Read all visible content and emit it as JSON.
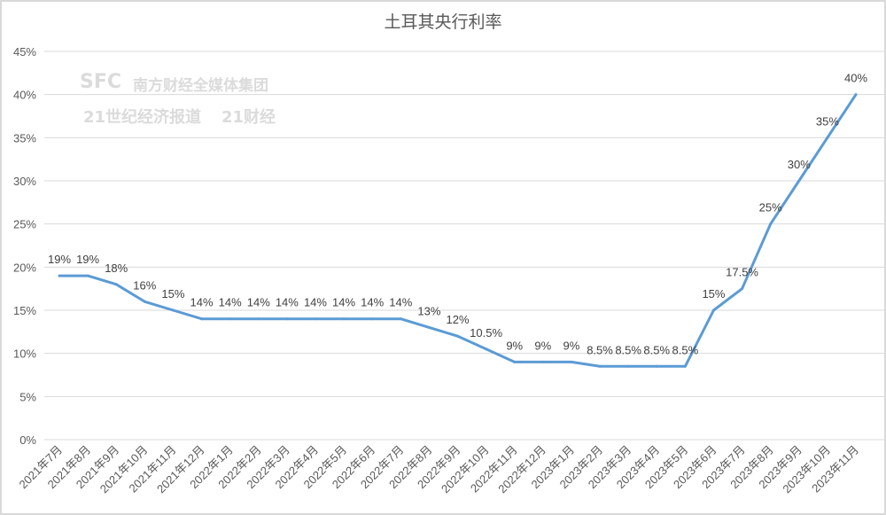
{
  "chart_data": {
    "type": "line",
    "title": "土耳其央行利率",
    "xlabel": "",
    "ylabel": "",
    "categories": [
      "2021年7月",
      "2021年8月",
      "2021年9月",
      "2021年10月",
      "2021年11月",
      "2021年12月",
      "2022年1月",
      "2022年2月",
      "2022年3月",
      "2022年4月",
      "2022年5月",
      "2022年6月",
      "2022年7月",
      "2022年8月",
      "2022年9月",
      "2022年10月",
      "2022年11月",
      "2022年12月",
      "2023年1月",
      "2023年2月",
      "2023年3月",
      "2023年4月",
      "2023年5月",
      "2023年6月",
      "2023年7月",
      "2023年8月",
      "2023年9月",
      "2023年10月",
      "2023年11月"
    ],
    "values": [
      19,
      19,
      18,
      16,
      15,
      14,
      14,
      14,
      14,
      14,
      14,
      14,
      14,
      13,
      12,
      10.5,
      9,
      9,
      9,
      8.5,
      8.5,
      8.5,
      8.5,
      15,
      17.5,
      25,
      30,
      35,
      40
    ],
    "data_labels": [
      "19%",
      "19%",
      "18%",
      "16%",
      "15%",
      "14%",
      "14%",
      "14%",
      "14%",
      "14%",
      "14%",
      "14%",
      "14%",
      "13%",
      "12%",
      "10.5%",
      "9%",
      "9%",
      "9%",
      "8.5%",
      "8.5%",
      "8.5%",
      "8.5%",
      "15%",
      "17.5%",
      "25%",
      "30%",
      "35%",
      "40%"
    ],
    "ylim": [
      0,
      45
    ],
    "yticks": [
      "0%",
      "5%",
      "10%",
      "15%",
      "20%",
      "25%",
      "30%",
      "35%",
      "40%",
      "45%"
    ],
    "grid": true,
    "legend": "none",
    "line_color": "#5b9bd5"
  },
  "watermark": {
    "logo": "SFC",
    "line1": "南方财经全媒体集团",
    "line2": "21世纪经济报道",
    "line3": "21财经"
  }
}
